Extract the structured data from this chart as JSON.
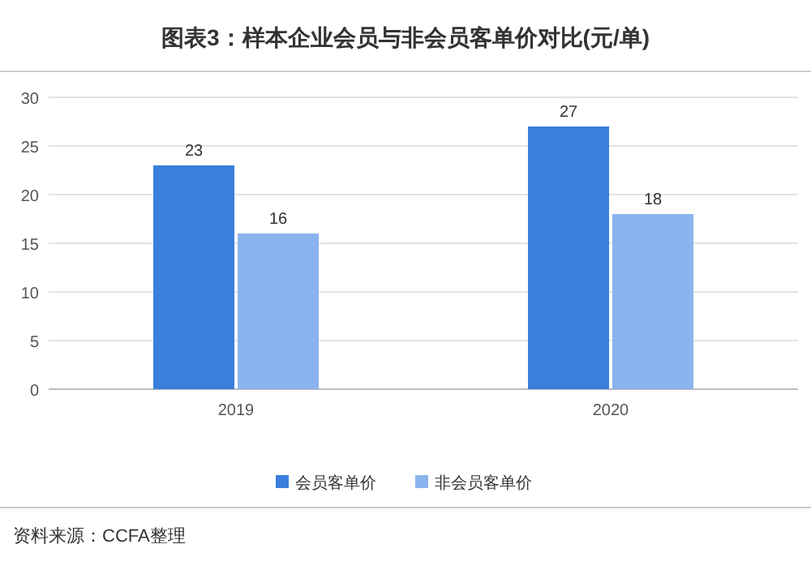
{
  "chart_data": {
    "type": "bar",
    "title": "图表3：样本企业会员与非会员客单价对比(元/单)",
    "categories": [
      "2019",
      "2020"
    ],
    "series": [
      {
        "name": "会员客单价",
        "color": "#3a7fdc",
        "values": [
          23,
          27
        ]
      },
      {
        "name": "非会员客单价",
        "color": "#8ab4ee",
        "values": [
          16,
          18
        ]
      }
    ],
    "ylim": [
      0,
      30
    ],
    "yticks": [
      0,
      5,
      10,
      15,
      20,
      25,
      30
    ],
    "grid": "y",
    "legend": "bottom",
    "data_labels": true,
    "annotations": [
      "资料来源：CCFA整理"
    ]
  }
}
